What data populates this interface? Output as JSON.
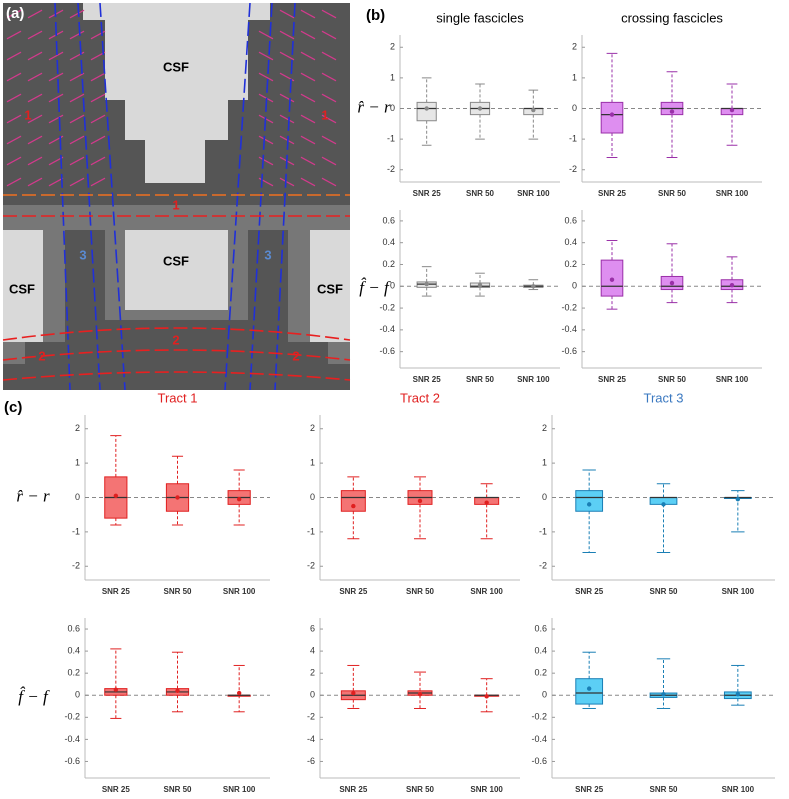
{
  "panel_labels": [
    "(a)",
    "(b)",
    "(c)"
  ],
  "panel_a": {
    "labels": [
      "CSF",
      "1",
      "1",
      "1",
      "CSF",
      "3",
      "3",
      "CSF",
      "CSF",
      "2",
      "2",
      "2"
    ]
  },
  "chart_data": [
    {
      "type": "box",
      "title": "single fascicles",
      "ylabel": "r̂ − r",
      "categories": [
        "SNR 25",
        "SNR 50",
        "SNR 100"
      ],
      "color": "#888888",
      "fill": "#e6e6e6",
      "boxes": [
        {
          "min": -1.2,
          "q1": -0.4,
          "median": 0,
          "q3": 0.2,
          "max": 1.0,
          "mean": 0
        },
        {
          "min": -1.0,
          "q1": -0.2,
          "median": 0,
          "q3": 0.2,
          "max": 0.8,
          "mean": 0
        },
        {
          "min": -1.0,
          "q1": -0.2,
          "median": 0,
          "q3": 0,
          "max": 0.6,
          "mean": -0.05
        }
      ],
      "ylim": [
        -2.4,
        2.4
      ],
      "yticks": [
        -2,
        -1,
        0,
        1,
        2
      ]
    },
    {
      "type": "box",
      "title": "crossing fascicles",
      "categories": [
        "SNR 25",
        "SNR 50",
        "SNR 100"
      ],
      "color": "#9a30a8",
      "fill": "#de8ef0",
      "boxes": [
        {
          "min": -1.6,
          "q1": -0.8,
          "median": -0.2,
          "q3": 0.2,
          "max": 1.8,
          "mean": -0.2
        },
        {
          "min": -1.6,
          "q1": -0.2,
          "median": 0,
          "q3": 0.2,
          "max": 1.2,
          "mean": -0.1
        },
        {
          "min": -1.2,
          "q1": -0.2,
          "median": 0,
          "q3": 0,
          "max": 0.8,
          "mean": -0.05
        }
      ],
      "ylim": [
        -2.4,
        2.4
      ],
      "yticks": [
        -2,
        -1,
        0,
        1,
        2
      ]
    },
    {
      "type": "box",
      "ylabel": "f̂ − f",
      "categories": [
        "SNR 25",
        "SNR 50",
        "SNR 100"
      ],
      "color": "#888888",
      "fill": "#e6e6e6",
      "boxes": [
        {
          "min": -0.09,
          "q1": -0.01,
          "median": 0.02,
          "q3": 0.04,
          "max": 0.18,
          "mean": 0.02
        },
        {
          "min": -0.09,
          "q1": -0.01,
          "median": 0,
          "q3": 0.03,
          "max": 0.12,
          "mean": 0.01
        },
        {
          "min": -0.03,
          "q1": -0.01,
          "median": 0,
          "q3": 0.01,
          "max": 0.06,
          "mean": 0
        }
      ],
      "ylim": [
        -0.75,
        0.7
      ],
      "yticks": [
        -0.6,
        -0.4,
        -0.2,
        0,
        0.2,
        0.4,
        0.6
      ]
    },
    {
      "type": "box",
      "categories": [
        "SNR 25",
        "SNR 50",
        "SNR 100"
      ],
      "color": "#9a30a8",
      "fill": "#de8ef0",
      "boxes": [
        {
          "min": -0.21,
          "q1": -0.09,
          "median": 0,
          "q3": 0.24,
          "max": 0.42,
          "mean": 0.06
        },
        {
          "min": -0.15,
          "q1": -0.03,
          "median": 0,
          "q3": 0.09,
          "max": 0.39,
          "mean": 0.03
        },
        {
          "min": -0.15,
          "q1": -0.03,
          "median": 0,
          "q3": 0.06,
          "max": 0.27,
          "mean": 0.01
        }
      ],
      "ylim": [
        -0.75,
        0.7
      ],
      "yticks": [
        -0.6,
        -0.4,
        -0.2,
        0,
        0.2,
        0.4,
        0.6
      ]
    },
    {
      "type": "box",
      "title": "Tract 1",
      "title_color": "#e02020",
      "ylabel": "r̂ − r",
      "categories": [
        "SNR 25",
        "SNR 50",
        "SNR 100"
      ],
      "color": "#e02020",
      "fill": "#f47474",
      "boxes": [
        {
          "min": -0.8,
          "q1": -0.6,
          "median": 0,
          "q3": 0.6,
          "max": 1.8,
          "mean": 0.05
        },
        {
          "min": -0.8,
          "q1": -0.4,
          "median": 0,
          "q3": 0.4,
          "max": 1.2,
          "mean": 0
        },
        {
          "min": -0.8,
          "q1": -0.2,
          "median": 0,
          "q3": 0.2,
          "max": 0.8,
          "mean": -0.05
        }
      ],
      "ylim": [
        -2.4,
        2.4
      ],
      "yticks": [
        -2,
        -1,
        0,
        1,
        2
      ]
    },
    {
      "type": "box",
      "title": "Tract 2",
      "title_color": "#e02020",
      "categories": [
        "SNR 25",
        "SNR 50",
        "SNR 100"
      ],
      "color": "#e02020",
      "fill": "#f47474",
      "boxes": [
        {
          "min": -1.2,
          "q1": -0.4,
          "median": 0,
          "q3": 0.2,
          "max": 0.6,
          "mean": -0.25
        },
        {
          "min": -1.2,
          "q1": -0.2,
          "median": 0,
          "q3": 0.2,
          "max": 0.6,
          "mean": -0.1
        },
        {
          "min": -1.2,
          "q1": -0.2,
          "median": 0,
          "q3": 0,
          "max": 0.4,
          "mean": -0.15
        }
      ],
      "ylim": [
        -2.4,
        2.4
      ],
      "yticks": [
        -2,
        -1,
        0,
        1,
        2
      ]
    },
    {
      "type": "box",
      "title": "Tract 3",
      "title_color": "#3a78c0",
      "categories": [
        "SNR 25",
        "SNR 50",
        "SNR 100"
      ],
      "color": "#1a7fb5",
      "fill": "#5ccff5",
      "boxes": [
        {
          "min": -1.6,
          "q1": -0.4,
          "median": 0,
          "q3": 0.2,
          "max": 0.8,
          "mean": -0.2
        },
        {
          "min": -1.6,
          "q1": -0.2,
          "median": 0,
          "q3": 0,
          "max": 0.4,
          "mean": -0.2
        },
        {
          "min": -1.0,
          "q1": 0,
          "median": 0,
          "q3": 0,
          "max": 0.2,
          "mean": -0.05
        }
      ],
      "ylim": [
        -2.4,
        2.4
      ],
      "yticks": [
        -2,
        -1,
        0,
        1,
        2
      ]
    },
    {
      "type": "box",
      "ylabel": "f̂ − f",
      "categories": [
        "SNR 25",
        "SNR 50",
        "SNR 100"
      ],
      "color": "#e02020",
      "fill": "#f47474",
      "boxes": [
        {
          "min": -0.21,
          "q1": 0,
          "median": 0.03,
          "q3": 0.06,
          "max": 0.42,
          "mean": 0.05
        },
        {
          "min": -0.15,
          "q1": 0,
          "median": 0.03,
          "q3": 0.06,
          "max": 0.39,
          "mean": 0.04
        },
        {
          "min": -0.15,
          "q1": 0,
          "median": 0,
          "q3": 0,
          "max": 0.27,
          "mean": 0.02
        }
      ],
      "ylim": [
        -0.75,
        0.7
      ],
      "yticks": [
        -0.6,
        -0.4,
        -0.2,
        0,
        0.2,
        0.4,
        0.6
      ]
    },
    {
      "type": "box",
      "categories": [
        "SNR 25",
        "SNR 50",
        "SNR 100"
      ],
      "color": "#e02020",
      "fill": "#f47474",
      "boxes": [
        {
          "min": -1.2,
          "q1": -0.4,
          "median": 0,
          "q3": 0.4,
          "max": 2.7,
          "mean": 0.2
        },
        {
          "min": -1.2,
          "q1": 0,
          "median": 0.2,
          "q3": 0.4,
          "max": 2.1,
          "mean": 0.1
        },
        {
          "min": -1.5,
          "q1": 0,
          "median": 0,
          "q3": 0,
          "max": 1.5,
          "mean": -0.1
        }
      ],
      "ylim": [
        -7.5,
        7
      ],
      "yticks": [
        -6,
        -4,
        -2,
        0,
        2,
        4,
        6
      ]
    },
    {
      "type": "box",
      "categories": [
        "SNR 25",
        "SNR 50",
        "SNR 100"
      ],
      "color": "#1a7fb5",
      "fill": "#5ccff5",
      "boxes": [
        {
          "min": -0.12,
          "q1": -0.08,
          "median": 0.02,
          "q3": 0.15,
          "max": 0.39,
          "mean": 0.06
        },
        {
          "min": -0.12,
          "q1": -0.02,
          "median": 0,
          "q3": 0.02,
          "max": 0.33,
          "mean": 0.01
        },
        {
          "min": -0.09,
          "q1": -0.03,
          "median": 0,
          "q3": 0.03,
          "max": 0.27,
          "mean": 0.01
        }
      ],
      "ylim": [
        -0.75,
        0.7
      ],
      "yticks": [
        -0.6,
        -0.4,
        -0.2,
        0,
        0.2,
        0.4,
        0.6
      ]
    }
  ]
}
